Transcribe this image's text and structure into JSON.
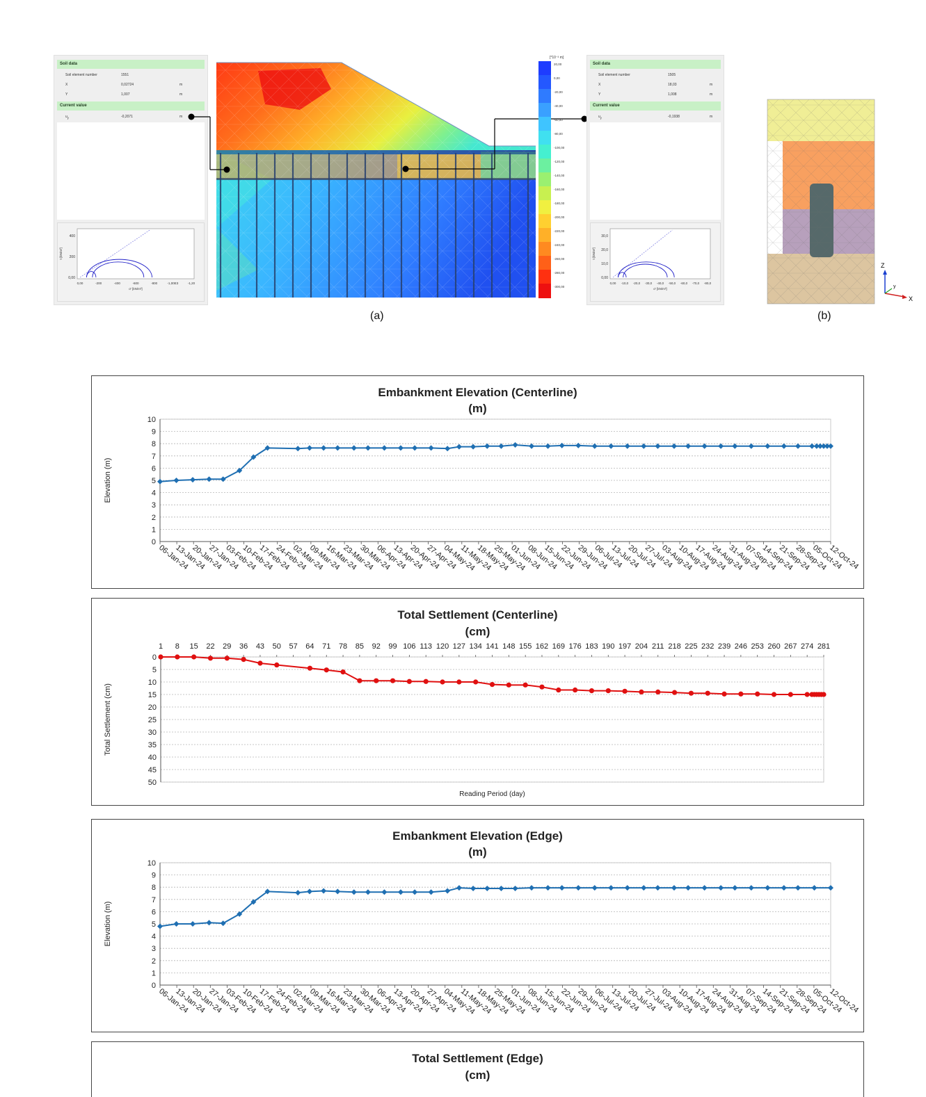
{
  "figure": {
    "caption_a": "(a)",
    "caption_b": "(b)",
    "left_panel": {
      "soil_data_title": "Soil data",
      "rows": [
        {
          "label": "Soil element number",
          "value": "1551",
          "unit": ""
        },
        {
          "label": "X",
          "value": "0,02724",
          "unit": "m"
        },
        {
          "label": "Y",
          "value": "1,007",
          "unit": "m"
        }
      ],
      "current_value_title": "Current value",
      "current": {
        "label": "u",
        "sub": "y",
        "value": "-0,2071",
        "unit": "m"
      },
      "mohr": {
        "yticks": [
          "400",
          "200",
          "0,00"
        ],
        "xticks": [
          "0,00",
          "-200",
          "-400",
          "-600",
          "-800",
          "-1,00E3",
          "-1,20"
        ],
        "xlabel": "σ' [kN/m²]",
        "ylabel": "τ [kN/m²]"
      }
    },
    "right_panel": {
      "soil_data_title": "Soil data",
      "rows": [
        {
          "label": "Soil element number",
          "value": "1505",
          "unit": ""
        },
        {
          "label": "X",
          "value": "18,03",
          "unit": "m"
        },
        {
          "label": "Y",
          "value": "1,008",
          "unit": "m"
        }
      ],
      "current_value_title": "Current value",
      "current": {
        "label": "u",
        "sub": "y",
        "value": "-0,1938",
        "unit": "m"
      },
      "mohr": {
        "yticks": [
          "30,0",
          "20,0",
          "10,0",
          "0,00"
        ],
        "xticks": [
          "0,00",
          "-10,0",
          "-20,0",
          "-30,0",
          "-40,0",
          "-50,0",
          "-60,0",
          "-70,0",
          "-80,0"
        ],
        "xlabel": "σ' [kN/m²]",
        "ylabel": "τ [kN/m²]"
      }
    },
    "legend": {
      "unit": "[*10⁻³ m]",
      "values": [
        "20,00",
        "0,00",
        "-20,00",
        "-40,00",
        "-60,00",
        "-80,00",
        "-100,00",
        "-120,00",
        "-140,00",
        "-160,00",
        "-180,00",
        "-200,00",
        "-220,00",
        "-240,00",
        "-260,00",
        "-280,00",
        "-300,00"
      ],
      "colors": [
        "#1e3cff",
        "#2458ff",
        "#2f7bff",
        "#3aa0ff",
        "#3fc4ff",
        "#40e0f0",
        "#45f0d0",
        "#6cf0a0",
        "#9af070",
        "#c8f050",
        "#f0f040",
        "#ffd030",
        "#ffb028",
        "#ff8a20",
        "#ff6018",
        "#ff3010",
        "#ee1010"
      ]
    },
    "axes3d": {
      "z": "Z",
      "y": "y",
      "x": "X"
    }
  },
  "chart_data": [
    {
      "type": "line",
      "title": "Embankment Elevation (Centerline)",
      "subtitle": "(m)",
      "ylabel": "Elevation (m)",
      "ylim": [
        0,
        10
      ],
      "yticks": [
        0,
        1,
        2,
        3,
        4,
        5,
        6,
        7,
        8,
        9,
        10
      ],
      "categories": [
        "06-Jan-24",
        "13-Jan-24",
        "20-Jan-24",
        "27-Jan-24",
        "03-Feb-24",
        "10-Feb-24",
        "17-Feb-24",
        "24-Feb-24",
        "02-Mar-24",
        "09-Mar-24",
        "16-Mar-24",
        "23-Mar-24",
        "30-Mar-24",
        "06-Apr-24",
        "13-Apr-24",
        "20-Apr-24",
        "27-Apr-24",
        "04-May-24",
        "11-May-24",
        "18-May-24",
        "25-May-24",
        "01-Jun-24",
        "08-Jun-24",
        "15-Jun-24",
        "22-Jun-24",
        "29-Jun-24",
        "06-Jul-24",
        "13-Jul-24",
        "20-Jul-24",
        "27-Jul-24",
        "03-Aug-24",
        "10-Aug-24",
        "17-Aug-24",
        "24-Aug-24",
        "31-Aug-24",
        "07-Sep-24",
        "14-Sep-24",
        "21-Sep-24",
        "28-Sep-24",
        "05-Oct-24",
        "12-Oct-24"
      ],
      "series": [
        {
          "color": "#1f6fb2",
          "x": [
            0,
            0.7,
            1.4,
            2.1,
            2.7,
            3.4,
            4.0,
            4.6,
            5.9,
            6.4,
            7.0,
            7.6,
            8.3,
            8.9,
            9.6,
            10.3,
            10.9,
            11.6,
            12.3,
            12.8,
            13.4,
            14.0,
            14.6,
            15.2,
            15.9,
            16.6,
            17.2,
            17.9,
            18.6,
            19.3,
            20.0,
            20.7,
            21.3,
            22.0,
            22.6,
            23.3,
            24.0,
            24.6,
            25.3,
            26.0,
            26.7,
            27.3,
            27.9,
            28.1,
            28.25,
            28.4,
            28.55,
            28.7
          ],
          "y": [
            4.9,
            5.0,
            5.05,
            5.1,
            5.1,
            5.8,
            6.9,
            7.65,
            7.6,
            7.65,
            7.65,
            7.65,
            7.65,
            7.65,
            7.65,
            7.65,
            7.65,
            7.65,
            7.6,
            7.75,
            7.75,
            7.8,
            7.8,
            7.9,
            7.8,
            7.8,
            7.85,
            7.85,
            7.8,
            7.8,
            7.8,
            7.8,
            7.8,
            7.8,
            7.8,
            7.8,
            7.8,
            7.8,
            7.8,
            7.8,
            7.8,
            7.8,
            7.8,
            7.8,
            7.8,
            7.8,
            7.8,
            7.8
          ]
        }
      ]
    },
    {
      "type": "line",
      "title": "Total Settlement (Centerline)",
      "subtitle": "(cm)",
      "ylabel": "Total Settlement (cm)",
      "xlabel": "Reading Period (day)",
      "ylim": [
        0,
        50
      ],
      "yticks": [
        0,
        5,
        10,
        15,
        20,
        25,
        30,
        35,
        40,
        45,
        50
      ],
      "xticks": [
        1,
        8,
        15,
        22,
        29,
        36,
        43,
        50,
        57,
        64,
        71,
        78,
        85,
        92,
        99,
        106,
        113,
        120,
        127,
        134,
        141,
        148,
        155,
        162,
        169,
        176,
        183,
        190,
        197,
        204,
        211,
        218,
        225,
        232,
        239,
        246,
        253,
        260,
        267,
        274,
        281
      ],
      "xlim": [
        1,
        281
      ],
      "series": [
        {
          "color": "#e01010",
          "x": [
            1,
            8,
            15,
            22,
            29,
            36,
            43,
            50,
            64,
            71,
            78,
            85,
            92,
            99,
            106,
            113,
            120,
            127,
            134,
            141,
            148,
            155,
            162,
            169,
            176,
            183,
            190,
            197,
            204,
            211,
            218,
            225,
            232,
            239,
            246,
            253,
            260,
            267,
            274,
            276,
            277,
            278,
            279,
            280,
            281
          ],
          "y": [
            0,
            0,
            0,
            0.5,
            0.5,
            1.0,
            2.5,
            3.2,
            4.5,
            5.2,
            6.0,
            9.5,
            9.5,
            9.5,
            9.8,
            9.8,
            10.0,
            10.0,
            10.0,
            11.0,
            11.2,
            11.2,
            12.0,
            13.2,
            13.2,
            13.5,
            13.5,
            13.7,
            14.0,
            14.0,
            14.2,
            14.5,
            14.5,
            14.8,
            14.8,
            14.8,
            15.0,
            15.0,
            15.0,
            15.0,
            15.0,
            15.0,
            15.0,
            15.0,
            15.0
          ]
        }
      ]
    },
    {
      "type": "line",
      "title": "Embankment Elevation (Edge)",
      "subtitle": "(m)",
      "ylabel": "Elevation (m)",
      "ylim": [
        0,
        10
      ],
      "yticks": [
        0,
        1,
        2,
        3,
        4,
        5,
        6,
        7,
        8,
        9,
        10
      ],
      "categories": [
        "06-Jan-24",
        "13-Jan-24",
        "20-Jan-24",
        "27-Jan-24",
        "03-Feb-24",
        "10-Feb-24",
        "17-Feb-24",
        "24-Feb-24",
        "02-Mar-24",
        "09-Mar-24",
        "16-Mar-24",
        "23-Mar-24",
        "30-Mar-24",
        "06-Apr-24",
        "13-Apr-24",
        "20-Apr-24",
        "27-Apr-24",
        "04-May-24",
        "11-May-24",
        "18-May-24",
        "25-May-24",
        "01-Jun-24",
        "08-Jun-24",
        "15-Jun-24",
        "22-Jun-24",
        "29-Jun-24",
        "06-Jul-24",
        "13-Jul-24",
        "20-Jul-24",
        "27-Jul-24",
        "03-Aug-24",
        "10-Aug-24",
        "17-Aug-24",
        "24-Aug-24",
        "31-Aug-24",
        "07-Sep-24",
        "14-Sep-24",
        "21-Sep-24",
        "28-Sep-24",
        "05-Oct-24",
        "12-Oct-24"
      ],
      "series": [
        {
          "color": "#1f6fb2",
          "x": [
            0,
            0.7,
            1.4,
            2.1,
            2.7,
            3.4,
            4.0,
            4.6,
            5.9,
            6.4,
            7.0,
            7.6,
            8.3,
            8.9,
            9.6,
            10.3,
            10.9,
            11.6,
            12.3,
            12.8,
            13.4,
            14.0,
            14.6,
            15.2,
            15.9,
            16.6,
            17.2,
            17.9,
            18.6,
            19.3,
            20.0,
            20.7,
            21.3,
            22.0,
            22.6,
            23.3,
            24.0,
            24.6,
            25.3,
            26.0,
            26.7,
            27.3,
            28.0,
            28.7
          ],
          "y": [
            4.8,
            5.0,
            5.0,
            5.1,
            5.05,
            5.8,
            6.8,
            7.65,
            7.55,
            7.65,
            7.7,
            7.65,
            7.6,
            7.6,
            7.6,
            7.6,
            7.6,
            7.6,
            7.7,
            7.95,
            7.9,
            7.9,
            7.9,
            7.9,
            7.95,
            7.95,
            7.95,
            7.95,
            7.95,
            7.95,
            7.95,
            7.95,
            7.95,
            7.95,
            7.95,
            7.95,
            7.95,
            7.95,
            7.95,
            7.95,
            7.95,
            7.95,
            7.95,
            7.95
          ]
        }
      ]
    },
    {
      "type": "line",
      "title": "Total Settlement (Edge)",
      "subtitle": "(cm)",
      "series": []
    }
  ]
}
